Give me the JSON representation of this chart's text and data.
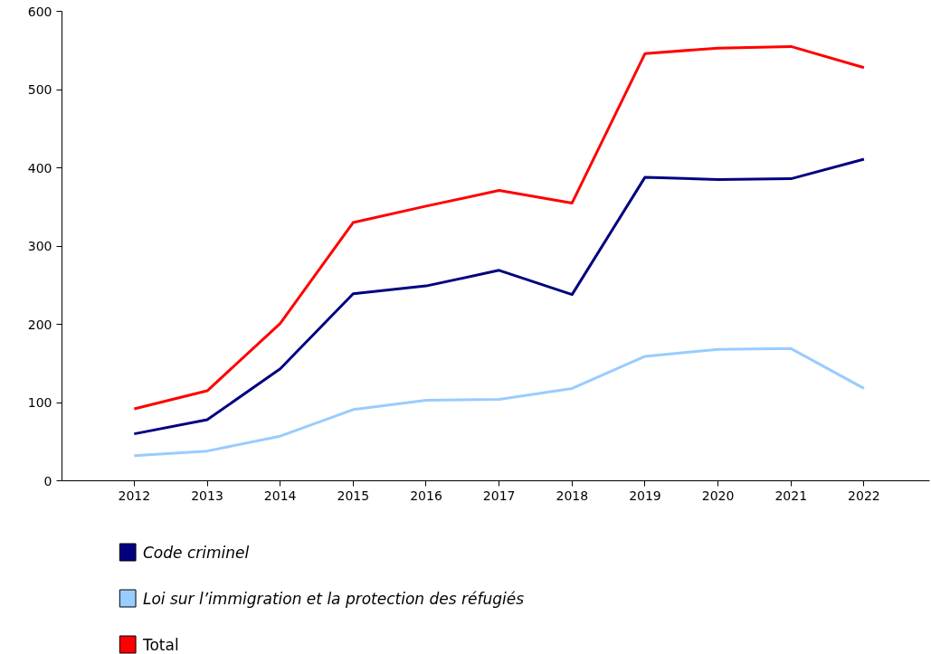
{
  "chart_data": {
    "type": "line",
    "categories": [
      "2012",
      "2013",
      "2014",
      "2015",
      "2016",
      "2017",
      "2018",
      "2019",
      "2020",
      "2021",
      "2022"
    ],
    "ylim": [
      0,
      600
    ],
    "yticks": [
      0,
      100,
      200,
      300,
      400,
      500,
      600
    ],
    "grid": false,
    "legend": "bottom",
    "marker": "none",
    "line_style": "solid",
    "series": [
      {
        "name": "Code criminel",
        "color": "#000080",
        "values": [
          60,
          78,
          143,
          239,
          249,
          269,
          238,
          388,
          385,
          386,
          411
        ]
      },
      {
        "name": "Loi sur l’immigration et la protection des réfugiés",
        "color": "#99ccff",
        "values": [
          32,
          38,
          57,
          91,
          103,
          104,
          118,
          159,
          168,
          169,
          118
        ]
      },
      {
        "name": "Total",
        "color": "#ff0000",
        "values": [
          92,
          115,
          201,
          330,
          351,
          371,
          355,
          546,
          553,
          555,
          528
        ]
      }
    ]
  }
}
